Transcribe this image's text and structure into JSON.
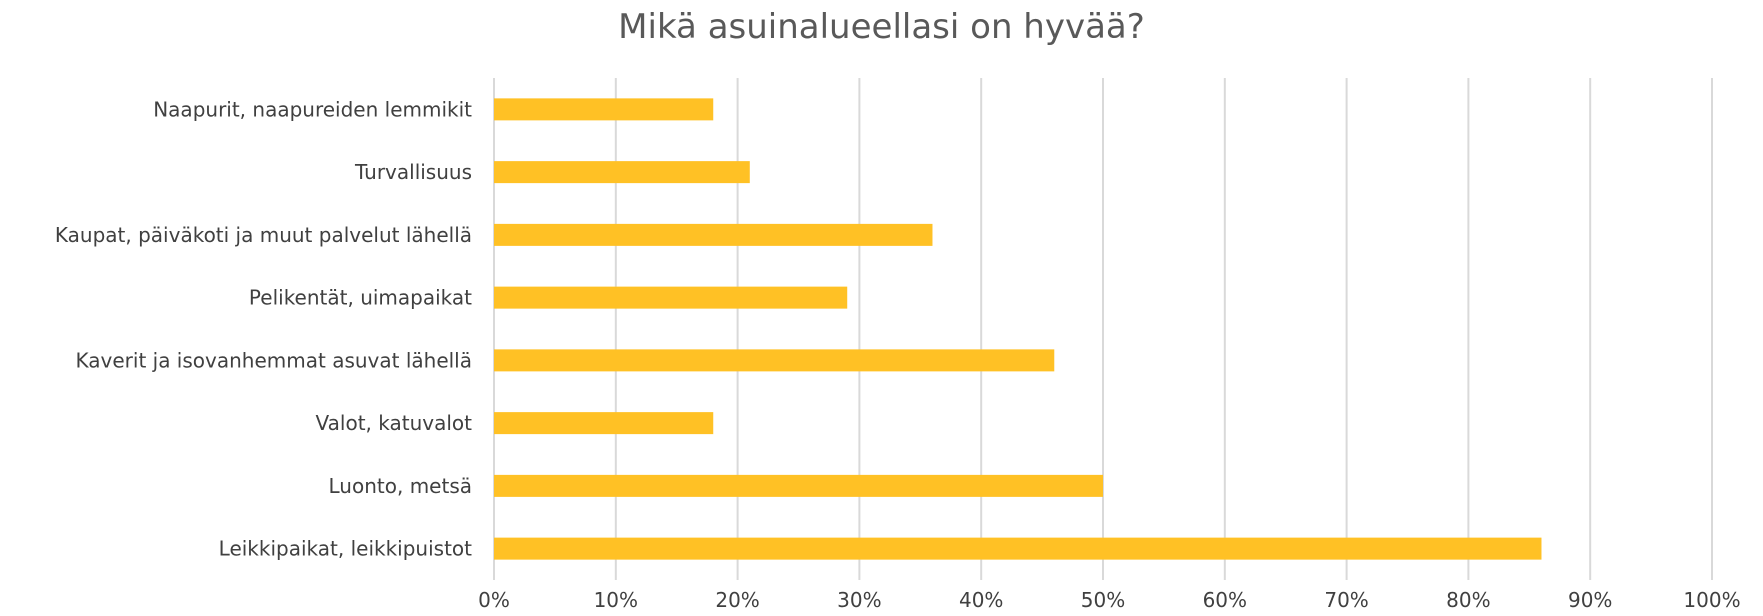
{
  "chart_data": {
    "type": "bar",
    "orientation": "horizontal",
    "title": "Mikä asuinalueellasi on hyvää?",
    "xlabel": "",
    "ylabel": "",
    "categories": [
      "Naapurit, naapureiden lemmikit",
      "Turvallisuus",
      "Kaupat, päiväkoti ja muut palvelut lähellä",
      "Pelikentät, uimapaikat",
      "Kaverit ja isovanhemmat asuvat lähellä",
      "Valot, katuvalot",
      "Luonto, metsä",
      "Leikkipaikat, leikkipuistot"
    ],
    "values": [
      18,
      21,
      36,
      29,
      46,
      18,
      50,
      86
    ],
    "xlim": [
      0,
      100
    ],
    "ticks": [
      0,
      10,
      20,
      30,
      40,
      50,
      60,
      70,
      80,
      90,
      100
    ],
    "tick_labels": [
      "0%",
      "10%",
      "20%",
      "30%",
      "40%",
      "50%",
      "60%",
      "70%",
      "80%",
      "90%",
      "100%"
    ],
    "grid": true,
    "legend": "none",
    "bar_color": "#FFC125",
    "grid_color": "#D9D9D9"
  }
}
